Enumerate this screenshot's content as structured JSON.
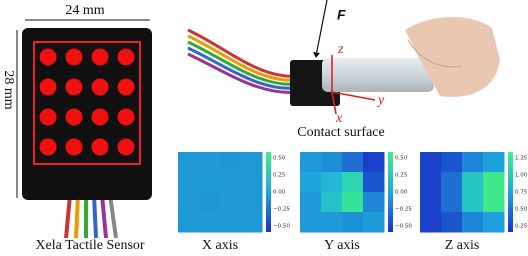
{
  "sensor": {
    "width_label": "24 mm",
    "height_label": "28 mm",
    "caption": "Xela Tactile Sensor"
  },
  "photo": {
    "force_label": "F",
    "z_label": "z",
    "y_label": "y",
    "x_label": "x",
    "caption": "Contact surface"
  },
  "panels": [
    {
      "caption": "X axis",
      "colorbar_ticks": [
        "0.50",
        "0.25",
        "0.00",
        "−0.25",
        "−0.50"
      ]
    },
    {
      "caption": "Y axis",
      "colorbar_ticks": [
        "0.50",
        "0.25",
        "0.00",
        "−0.25",
        "−0.50"
      ]
    },
    {
      "caption": "Z axis",
      "colorbar_ticks": [
        "1.25",
        "1.00",
        "0.75",
        "0.50",
        "0.25"
      ]
    }
  ]
}
